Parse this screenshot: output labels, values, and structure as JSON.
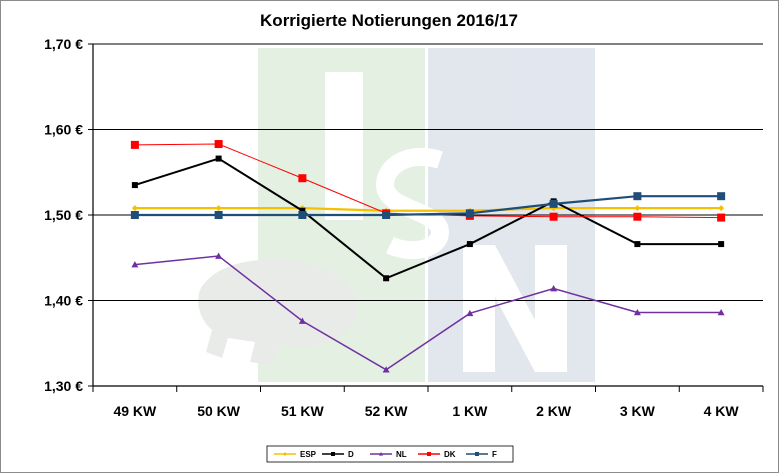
{
  "chart_data": {
    "type": "line",
    "title": "Korrigierte Notierungen 2016/17",
    "xlabel": "",
    "ylabel": "",
    "categories": [
      "49 KW",
      "50 KW",
      "51 KW",
      "52 KW",
      "1 KW",
      "2 KW",
      "3 KW",
      "4 KW"
    ],
    "ylim": [
      1.3,
      1.7
    ],
    "yticks": [
      1.3,
      1.4,
      1.5,
      1.6,
      1.7
    ],
    "ytick_labels": [
      "1,30 €",
      "1,40 €",
      "1,50 €",
      "1,60 €",
      "1,70 €"
    ],
    "grid": true,
    "legend_position": "bottom",
    "series": [
      {
        "name": "ESP",
        "color": "#f5c000",
        "marker": "diamond",
        "values": [
          1.508,
          1.508,
          1.508,
          1.505,
          1.505,
          1.508,
          1.508,
          1.508
        ]
      },
      {
        "name": "D",
        "color": "#000000",
        "marker": "square",
        "values": [
          1.535,
          1.566,
          1.505,
          1.426,
          1.466,
          1.516,
          1.466,
          1.466
        ]
      },
      {
        "name": "NL",
        "color": "#7030a0",
        "marker": "triangle",
        "values": [
          1.442,
          1.452,
          1.376,
          1.319,
          1.385,
          1.414,
          1.386,
          1.386
        ]
      },
      {
        "name": "DK",
        "color": "#ff0000",
        "marker": "square",
        "values": [
          1.582,
          1.583,
          1.543,
          1.502,
          1.499,
          1.498,
          1.498,
          1.497
        ]
      },
      {
        "name": "F",
        "color": "#1f4e79",
        "marker": "square",
        "values": [
          1.5,
          1.5,
          1.5,
          1.5,
          1.502,
          1.513,
          1.522,
          1.522
        ]
      }
    ]
  }
}
